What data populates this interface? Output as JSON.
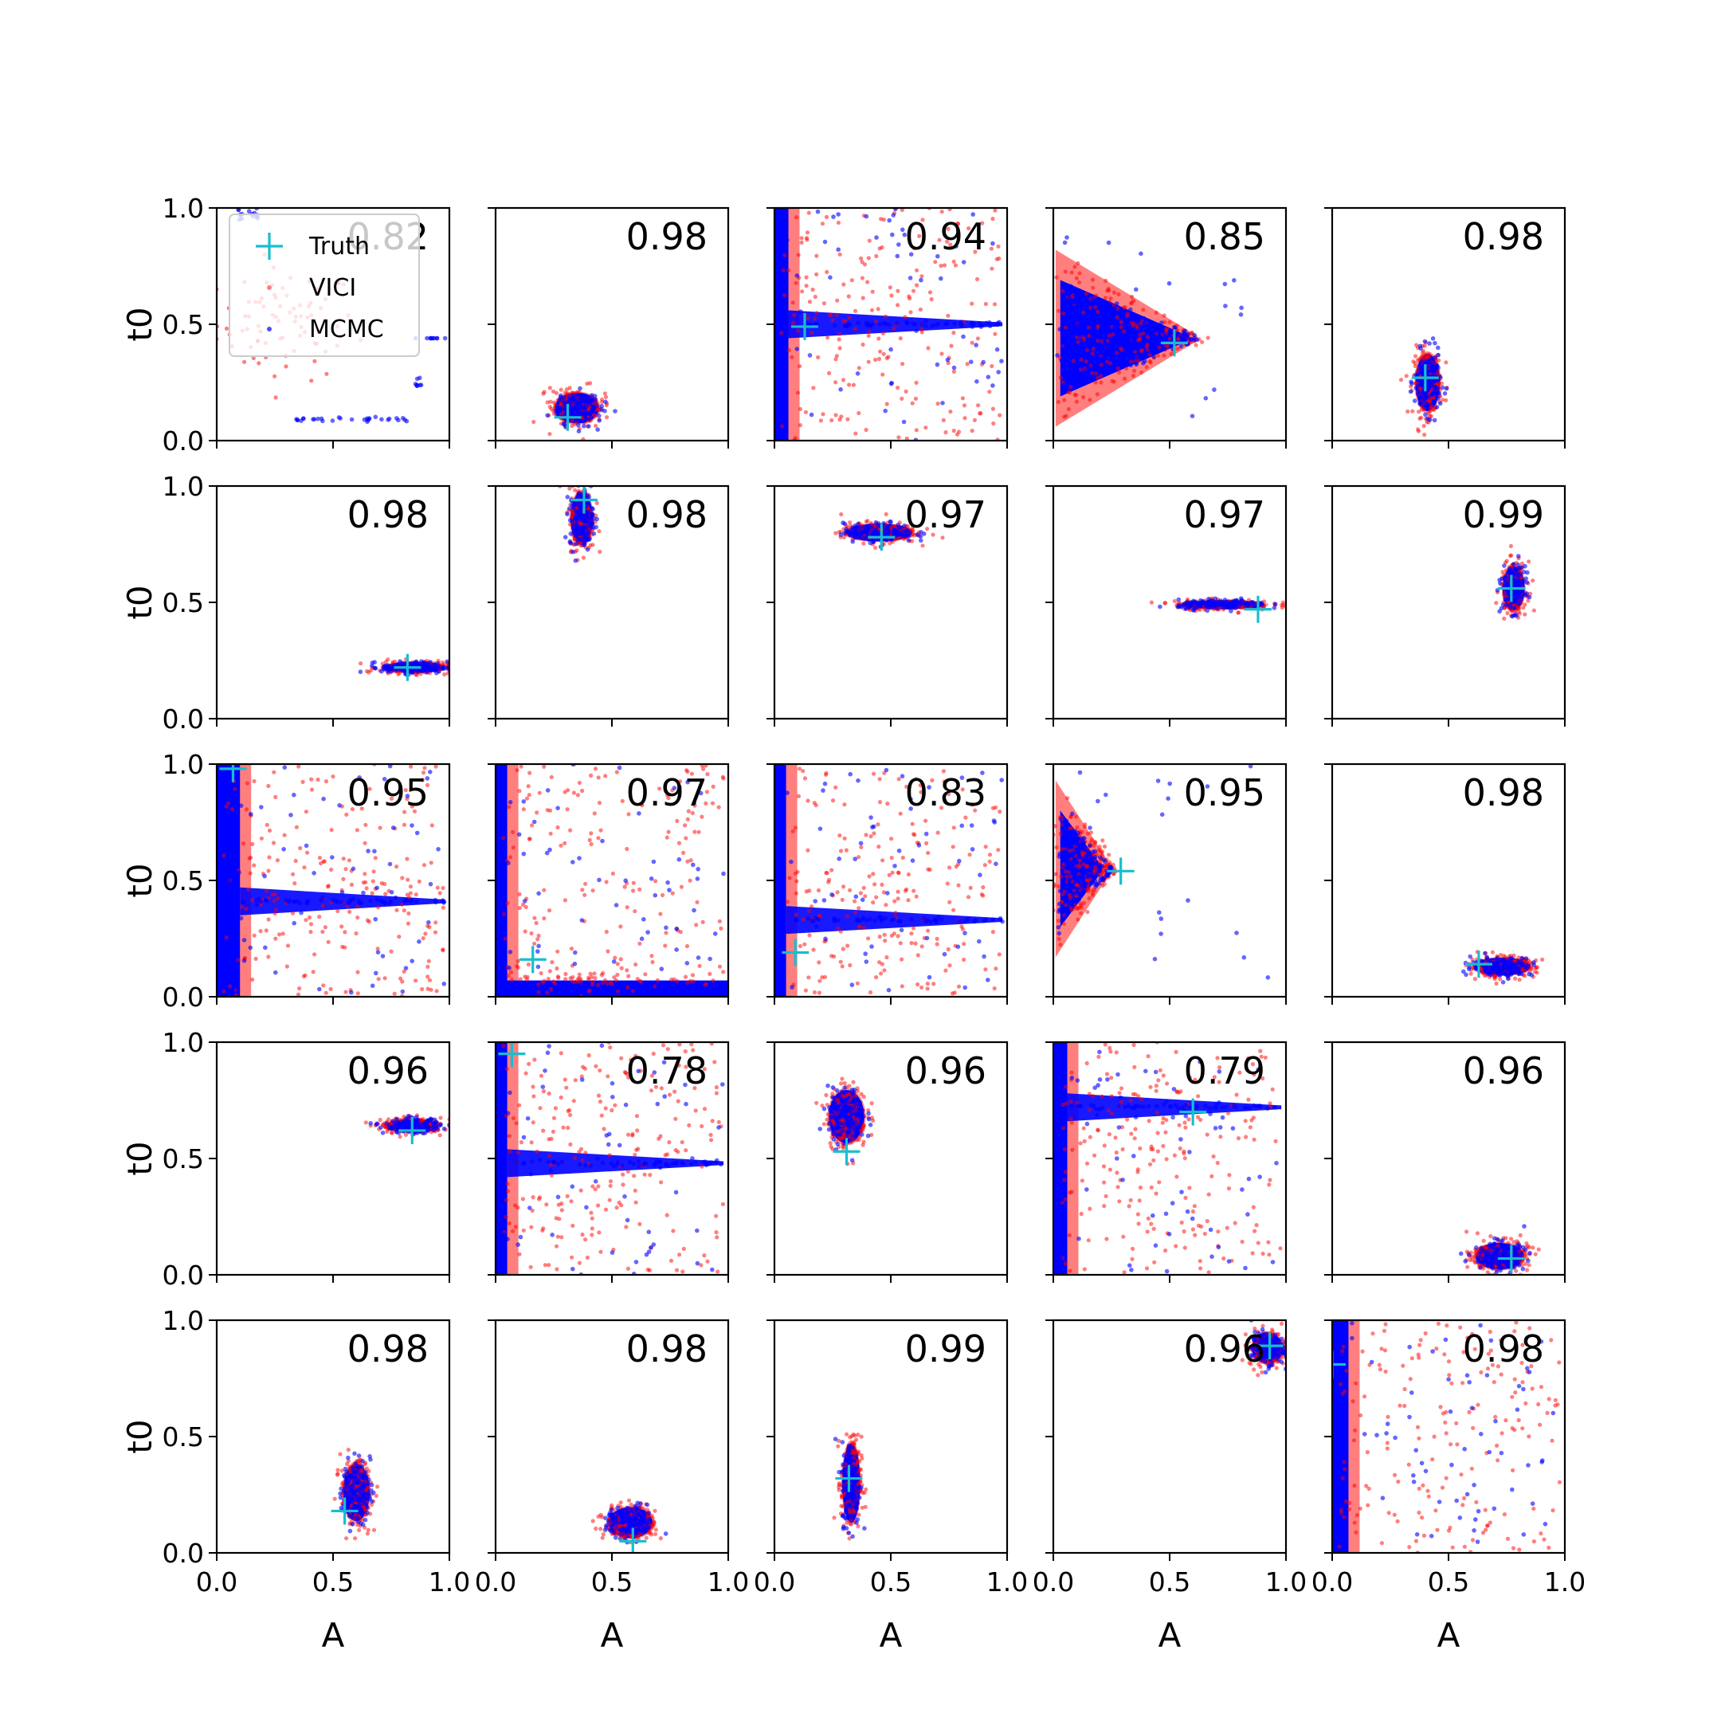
{
  "chart_data": {
    "type": "scatter",
    "layout": "5x5 grid of scatter plots",
    "xlabel": "A",
    "ylabel": "t0",
    "xlim": [
      0.0,
      1.0
    ],
    "ylim": [
      0.0,
      1.0
    ],
    "x_ticks": [
      "0.0",
      "0.5",
      "1.0"
    ],
    "y_ticks": [
      "0.0",
      "0.5",
      "1.0"
    ],
    "legend": {
      "position": "top-left (first panel)",
      "entries": [
        "Truth",
        "VICI",
        "MCMC"
      ]
    },
    "colors": {
      "truth": "#17becf",
      "vici": "#ff0000",
      "mcmc": "#0000ff"
    },
    "panels": [
      {
        "overlap": "0.82",
        "truth": null,
        "shape": "legend_first"
      },
      {
        "overlap": "0.98",
        "truth": [
          0.31,
          0.1
        ],
        "shape": "blob",
        "center": [
          0.35,
          0.14
        ],
        "spread": [
          0.1,
          0.07
        ]
      },
      {
        "overlap": "0.94",
        "truth": [
          0.13,
          0.49
        ],
        "shape": "wall",
        "wall_x": 0.06,
        "streak_y": 0.5
      },
      {
        "overlap": "0.85",
        "truth": [
          0.52,
          0.42
        ],
        "shape": "horn",
        "apex": [
          0.62,
          0.44
        ]
      },
      {
        "overlap": "0.98",
        "truth": [
          0.4,
          0.27
        ],
        "shape": "blob",
        "center": [
          0.41,
          0.25
        ],
        "spread": [
          0.055,
          0.13
        ]
      },
      {
        "overlap": "0.98",
        "truth": [
          0.82,
          0.22
        ],
        "shape": "blob",
        "center": [
          0.85,
          0.22
        ],
        "spread": [
          0.14,
          0.025
        ]
      },
      {
        "overlap": "0.98",
        "truth": [
          0.38,
          0.94
        ],
        "shape": "blob",
        "center": [
          0.37,
          0.86
        ],
        "spread": [
          0.05,
          0.12
        ]
      },
      {
        "overlap": "0.97",
        "truth": [
          0.46,
          0.78
        ],
        "shape": "blob",
        "center": [
          0.45,
          0.8
        ],
        "spread": [
          0.15,
          0.04
        ]
      },
      {
        "overlap": "0.97",
        "truth": [
          0.88,
          0.47
        ],
        "shape": "blob",
        "center": [
          0.73,
          0.49
        ],
        "spread": [
          0.19,
          0.02
        ]
      },
      {
        "overlap": "0.99",
        "truth": [
          0.77,
          0.56
        ],
        "shape": "blob",
        "center": [
          0.78,
          0.56
        ],
        "spread": [
          0.05,
          0.1
        ]
      },
      {
        "overlap": "0.95",
        "truth": [
          0.07,
          0.98
        ],
        "shape": "wall",
        "wall_x": 0.1,
        "streak_y": 0.41
      },
      {
        "overlap": "0.97",
        "truth": [
          0.16,
          0.16
        ],
        "shape": "floor",
        "wall_x": 0.05,
        "floor_y": 0.05
      },
      {
        "overlap": "0.83",
        "truth": [
          0.09,
          0.19
        ],
        "shape": "wall",
        "wall_x": 0.05,
        "streak_y": 0.33
      },
      {
        "overlap": "0.95",
        "truth": [
          0.29,
          0.54
        ],
        "shape": "horn",
        "apex": [
          0.25,
          0.55
        ]
      },
      {
        "overlap": "0.98",
        "truth": [
          0.63,
          0.14
        ],
        "shape": "blob",
        "center": [
          0.73,
          0.13
        ],
        "spread": [
          0.13,
          0.04
        ]
      },
      {
        "overlap": "0.96",
        "truth": [
          0.84,
          0.62
        ],
        "shape": "blob",
        "center": [
          0.84,
          0.64
        ],
        "spread": [
          0.12,
          0.03
        ]
      },
      {
        "overlap": "0.78",
        "truth": [
          0.07,
          0.95
        ],
        "shape": "wall",
        "wall_x": 0.05,
        "streak_y": 0.48
      },
      {
        "overlap": "0.96",
        "truth": [
          0.31,
          0.53
        ],
        "shape": "blob",
        "center": [
          0.31,
          0.68
        ],
        "spread": [
          0.08,
          0.12
        ]
      },
      {
        "overlap": "0.79",
        "truth": [
          0.6,
          0.7
        ],
        "shape": "wall",
        "wall_x": 0.06,
        "streak_y": 0.72
      },
      {
        "overlap": "0.96",
        "truth": [
          0.77,
          0.07
        ],
        "shape": "blob",
        "center": [
          0.72,
          0.08
        ],
        "spread": [
          0.11,
          0.06
        ]
      },
      {
        "overlap": "0.98",
        "truth": [
          0.55,
          0.18
        ],
        "shape": "blob",
        "center": [
          0.6,
          0.26
        ],
        "spread": [
          0.06,
          0.13
        ]
      },
      {
        "overlap": "0.98",
        "truth": [
          0.59,
          0.05
        ],
        "shape": "blob",
        "center": [
          0.58,
          0.13
        ],
        "spread": [
          0.1,
          0.07
        ]
      },
      {
        "overlap": "0.99",
        "truth": [
          0.32,
          0.32
        ],
        "shape": "blob",
        "center": [
          0.33,
          0.3
        ],
        "spread": [
          0.04,
          0.18
        ]
      },
      {
        "overlap": "0.96",
        "truth": [
          0.93,
          0.89
        ],
        "shape": "blob",
        "center": [
          0.92,
          0.88
        ],
        "spread": [
          0.07,
          0.07
        ]
      },
      {
        "overlap": "0.98",
        "truth": [
          0.0,
          0.81
        ],
        "shape": "wall",
        "wall_x": 0.07,
        "streak_y": null
      }
    ]
  }
}
